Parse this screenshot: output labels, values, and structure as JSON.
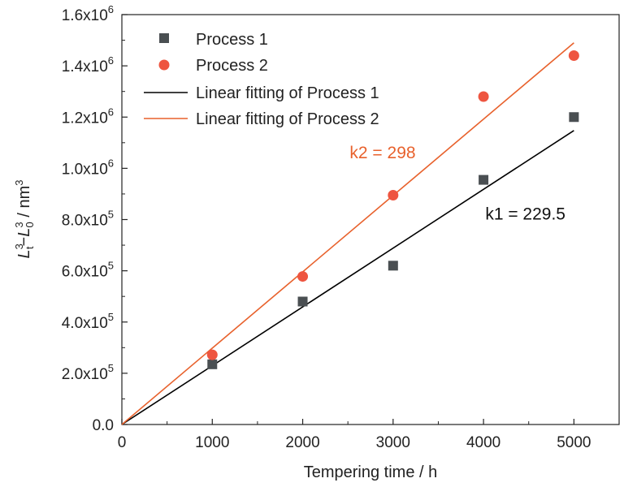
{
  "chart_data": {
    "type": "scatter",
    "xlabel": "Tempering time / h",
    "ylabel": {
      "main": "L",
      "sup1": "3",
      "sub1": "t",
      "minus": "−",
      "main2": "L",
      "sup2": "3",
      "sub2": "0",
      "unit": " / nm",
      "unit_sup": "3"
    },
    "xlim": [
      0,
      5500
    ],
    "ylim": [
      0,
      1600000
    ],
    "x_ticks": [
      {
        "value": 0,
        "label": "0"
      },
      {
        "value": 1000,
        "label": "1000"
      },
      {
        "value": 2000,
        "label": "2000"
      },
      {
        "value": 3000,
        "label": "3000"
      },
      {
        "value": 4000,
        "label": "4000"
      },
      {
        "value": 5000,
        "label": "5000"
      }
    ],
    "y_ticks": [
      {
        "value": 0,
        "label": "0.0",
        "exp": ""
      },
      {
        "value": 200000,
        "label": "2.0x10",
        "exp": "5"
      },
      {
        "value": 400000,
        "label": "4.0x10",
        "exp": "5"
      },
      {
        "value": 600000,
        "label": "6.0x10",
        "exp": "5"
      },
      {
        "value": 800000,
        "label": "8.0x10",
        "exp": "5"
      },
      {
        "value": 1000000,
        "label": "1.0x10",
        "exp": "6"
      },
      {
        "value": 1200000,
        "label": "1.2x10",
        "exp": "6"
      },
      {
        "value": 1400000,
        "label": "1.4x10",
        "exp": "6"
      },
      {
        "value": 1600000,
        "label": "1.6x10",
        "exp": "6"
      }
    ],
    "series": [
      {
        "name": "Process 1",
        "kind": "points",
        "marker": "square",
        "color": "#4a4f52",
        "x": [
          1000,
          2000,
          3000,
          4000,
          5000
        ],
        "y": [
          235000,
          480000,
          620000,
          955000,
          1200000
        ]
      },
      {
        "name": "Process 2",
        "kind": "points",
        "marker": "circle",
        "color": "#ee5540",
        "x": [
          1000,
          2000,
          3000,
          4000,
          5000
        ],
        "y": [
          272000,
          578000,
          895000,
          1280000,
          1440000
        ]
      },
      {
        "name": "Linear fitting of Process 1",
        "kind": "line",
        "color": "#000000",
        "x": [
          0,
          5000
        ],
        "y": [
          0,
          1147500
        ]
      },
      {
        "name": "Linear fitting of Process 2",
        "kind": "line",
        "color": "#e8612c",
        "x": [
          0,
          5000
        ],
        "y": [
          0,
          1490000
        ]
      }
    ],
    "annotations": [
      {
        "text": "k2 = 298",
        "color": "#e8612c",
        "x": 2520,
        "y": 1040000
      },
      {
        "text": "k1 = 229.5",
        "color": "#111111",
        "x": 4020,
        "y": 800000
      }
    ],
    "legend_position": "top-left",
    "grid": false
  }
}
